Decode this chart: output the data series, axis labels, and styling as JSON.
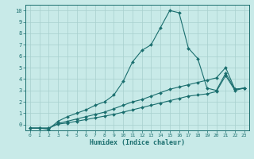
{
  "xlabel": "Humidex (Indice chaleur)",
  "ylabel": "",
  "bg_color": "#c8eae8",
  "grid_color": "#a8d0ce",
  "line_color": "#1a6e6e",
  "xlim": [
    -0.5,
    23.5
  ],
  "ylim": [
    -0.5,
    10.5
  ],
  "xticks": [
    0,
    1,
    2,
    3,
    4,
    5,
    6,
    7,
    8,
    9,
    10,
    11,
    12,
    13,
    14,
    15,
    16,
    17,
    18,
    19,
    20,
    21,
    22,
    23
  ],
  "yticks": [
    0,
    1,
    2,
    3,
    4,
    5,
    6,
    7,
    8,
    9,
    10
  ],
  "curve1_x": [
    0,
    1,
    2,
    3,
    4,
    5,
    6,
    7,
    8,
    9,
    10,
    11,
    12,
    13,
    14,
    15,
    16,
    17,
    18,
    19,
    20,
    21,
    22,
    23
  ],
  "curve1_y": [
    -0.3,
    -0.3,
    -0.4,
    0.3,
    0.7,
    1.0,
    1.3,
    1.7,
    2.0,
    2.6,
    3.8,
    5.5,
    6.5,
    7.0,
    8.5,
    10.0,
    9.8,
    6.7,
    5.8,
    3.2,
    3.0,
    4.5,
    3.1,
    3.2
  ],
  "curve2_x": [
    0,
    1,
    2,
    3,
    4,
    5,
    6,
    7,
    8,
    9,
    10,
    11,
    12,
    13,
    14,
    15,
    16,
    17,
    18,
    19,
    20,
    21,
    22,
    23
  ],
  "curve2_y": [
    -0.3,
    -0.3,
    -0.3,
    0.1,
    0.3,
    0.5,
    0.7,
    0.9,
    1.1,
    1.4,
    1.7,
    2.0,
    2.2,
    2.5,
    2.8,
    3.1,
    3.3,
    3.5,
    3.7,
    3.9,
    4.1,
    5.0,
    3.1,
    3.2
  ],
  "curve3_x": [
    0,
    1,
    2,
    3,
    4,
    5,
    6,
    7,
    8,
    9,
    10,
    11,
    12,
    13,
    14,
    15,
    16,
    17,
    18,
    19,
    20,
    21,
    22,
    23
  ],
  "curve3_y": [
    -0.3,
    -0.3,
    -0.3,
    0.05,
    0.15,
    0.3,
    0.45,
    0.6,
    0.75,
    0.9,
    1.1,
    1.3,
    1.5,
    1.7,
    1.9,
    2.1,
    2.3,
    2.5,
    2.6,
    2.7,
    2.9,
    4.3,
    3.0,
    3.2
  ]
}
